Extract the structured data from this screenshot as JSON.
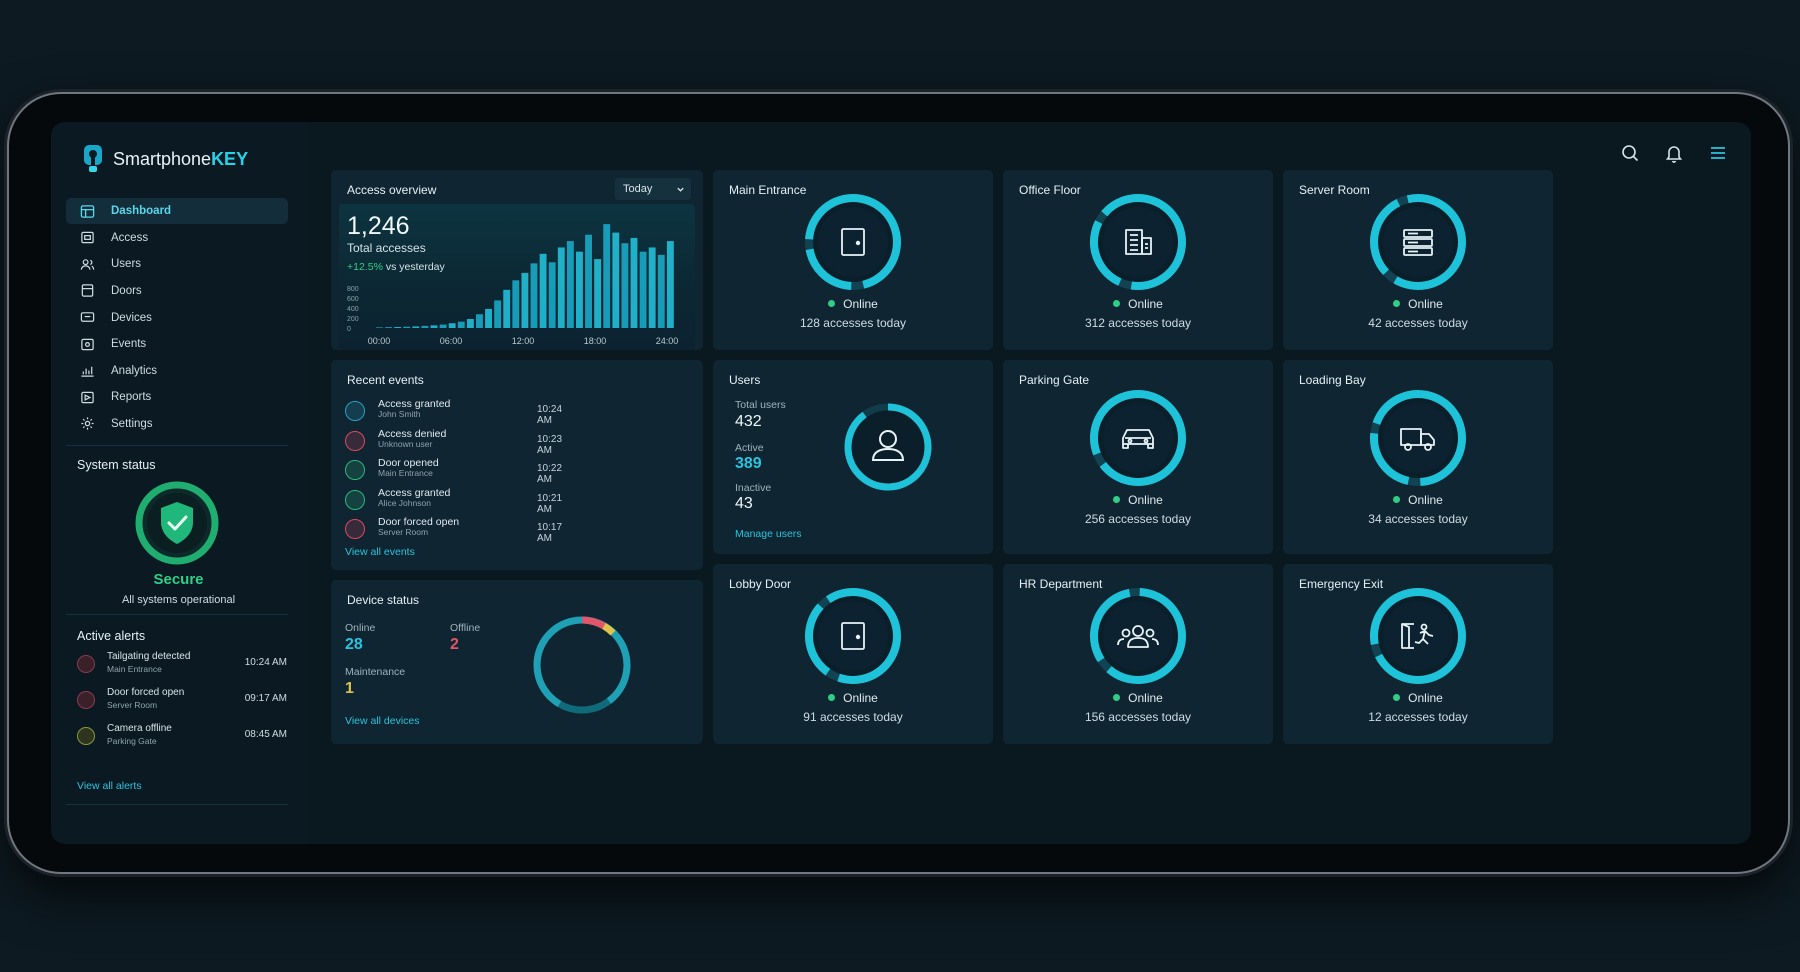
{
  "app": {
    "brand_a": "Smartphone",
    "brand_b": "KEY"
  },
  "nav": {
    "items": [
      {
        "label": "Dashboard",
        "icon": "dashboard-icon",
        "active": true
      },
      {
        "label": "Access",
        "icon": "access-icon"
      },
      {
        "label": "Users",
        "icon": "users-icon"
      },
      {
        "label": "Doors",
        "icon": "door-icon"
      },
      {
        "label": "Devices",
        "icon": "device-icon"
      },
      {
        "label": "Events",
        "icon": "events-icon"
      },
      {
        "label": "Analytics",
        "icon": "analytics-icon"
      },
      {
        "label": "Reports",
        "icon": "reports-icon"
      },
      {
        "label": "Settings",
        "icon": "gear-icon"
      }
    ]
  },
  "system_status": {
    "title": "System status",
    "state": "Secure",
    "message": "All systems operational"
  },
  "alerts": {
    "title": "Active alerts",
    "items": [
      {
        "title": "Tailgating detected",
        "location": "Main Entrance",
        "time": "10:24 AM",
        "color": "#e0566a"
      },
      {
        "title": "Door forced open",
        "location": "Server Room",
        "time": "09:17 AM",
        "color": "#e0566a"
      },
      {
        "title": "Camera offline",
        "location": "Parking Gate",
        "time": "08:45 AM",
        "color": "#c8d24a"
      }
    ],
    "link": "View all alerts"
  },
  "access_overview": {
    "title": "Access overview",
    "filter": "Today",
    "total": "1,246",
    "total_label": "Total accesses",
    "change": "+12.5%",
    "change_label": "vs yesterday"
  },
  "chart_data": {
    "type": "bar",
    "yticks": [
      "800",
      "600",
      "400",
      "200",
      "0"
    ],
    "xticks": [
      "00:00",
      "06:00",
      "12:00",
      "18:00",
      "24:00"
    ],
    "ylim": [
      0,
      1000
    ],
    "values": [
      5,
      8,
      10,
      12,
      15,
      20,
      25,
      32,
      45,
      60,
      85,
      130,
      180,
      260,
      360,
      450,
      520,
      610,
      700,
      620,
      760,
      820,
      720,
      880,
      650,
      980,
      900,
      800,
      850,
      720,
      760,
      690,
      820
    ]
  },
  "events": {
    "title": "Recent events",
    "items": [
      {
        "title": "Access granted",
        "sub": "John Smith",
        "time": "10:24 AM",
        "color": "#2a9fbf",
        "icon": "user-icon"
      },
      {
        "title": "Access denied",
        "sub": "Unknown user",
        "time": "10:23 AM",
        "color": "#d9485e",
        "icon": "user-icon"
      },
      {
        "title": "Door opened",
        "sub": "Main Entrance",
        "time": "10:22 AM",
        "color": "#2fb57a",
        "icon": "door-icon"
      },
      {
        "title": "Access granted",
        "sub": "Alice Johnson",
        "time": "10:21 AM",
        "color": "#2fb57a",
        "icon": "user-icon"
      },
      {
        "title": "Door forced open",
        "sub": "Server Room",
        "time": "10:17 AM",
        "color": "#d9485e",
        "icon": "door-icon"
      }
    ],
    "link": "View all events"
  },
  "device_status": {
    "title": "Device status",
    "online_label": "Online",
    "online": "28",
    "offline_label": "Offline",
    "offline": "2",
    "maint_label": "Maintenance",
    "maint": "1",
    "link": "View all devices"
  },
  "users": {
    "title": "Users",
    "total_label": "Total users",
    "total": "432",
    "active_label": "Active",
    "active": "389",
    "inactive_label": "Inactive",
    "inactive": "43",
    "link": "Manage users"
  },
  "doors": [
    {
      "name": "Main Entrance",
      "status": "Online",
      "accesses": "128 accesses today",
      "icon": "door-icon"
    },
    {
      "name": "Office Floor",
      "status": "Online",
      "accesses": "312 accesses today",
      "icon": "building-icon"
    },
    {
      "name": "Server Room",
      "status": "Online",
      "accesses": "42 accesses today",
      "icon": "server-icon"
    },
    {
      "name": "Parking Gate",
      "status": "Online",
      "accesses": "256 accesses today",
      "icon": "car-icon"
    },
    {
      "name": "Loading Bay",
      "status": "Online",
      "accesses": "34 accesses today",
      "icon": "truck-icon"
    },
    {
      "name": "Lobby Door",
      "status": "Online",
      "accesses": "91 accesses today",
      "icon": "door-icon"
    },
    {
      "name": "HR Department",
      "status": "Online",
      "accesses": "156 accesses today",
      "icon": "group-icon"
    },
    {
      "name": "Emergency Exit",
      "status": "Online",
      "accesses": "12 accesses today",
      "icon": "exit-icon"
    }
  ]
}
